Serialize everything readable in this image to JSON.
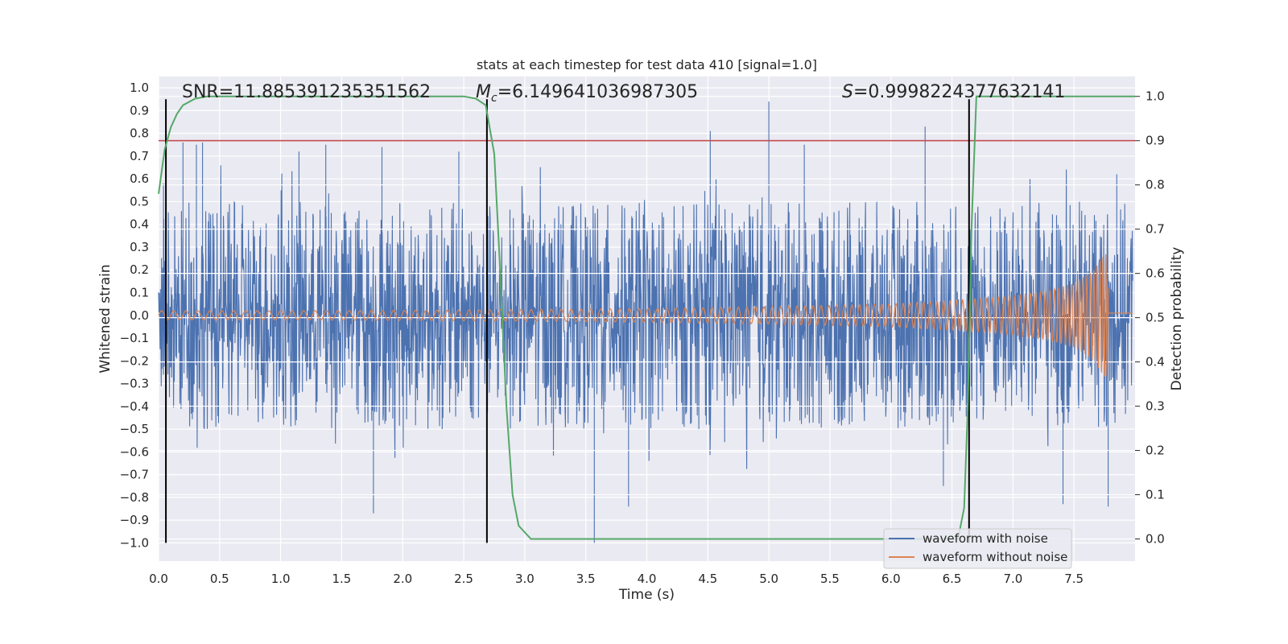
{
  "chart_data": {
    "type": "line",
    "title": "stats at each timestep for test data 410 [signal=1.0]",
    "xlabel": "Time (s)",
    "ylabel_left": "Whitened strain",
    "ylabel_right": "Detection probability",
    "xlim": [
      0.0,
      8.0
    ],
    "ylim_left": [
      -1.08,
      1.05
    ],
    "ylim_right": [
      -0.05,
      1.045
    ],
    "x_ticks": [
      "0.0",
      "0.5",
      "1.0",
      "1.5",
      "2.0",
      "2.5",
      "3.0",
      "3.5",
      "4.0",
      "4.5",
      "5.0",
      "5.5",
      "6.0",
      "6.5",
      "7.0",
      "7.5"
    ],
    "x_tick_values": [
      0.0,
      0.5,
      1.0,
      1.5,
      2.0,
      2.5,
      3.0,
      3.5,
      4.0,
      4.5,
      5.0,
      5.5,
      6.0,
      6.5,
      7.0,
      7.5
    ],
    "y_ticks_left": [
      "1.0",
      "0.9",
      "0.8",
      "0.7",
      "0.6",
      "0.5",
      "0.4",
      "0.3",
      "0.2",
      "0.1",
      "0.0",
      "−0.1",
      "−0.2",
      "−0.3",
      "−0.4",
      "−0.5",
      "−0.6",
      "−0.7",
      "−0.8",
      "−0.9",
      "−1.0"
    ],
    "y_tick_values_left": [
      1.0,
      0.9,
      0.8,
      0.7,
      0.6,
      0.5,
      0.4,
      0.3,
      0.2,
      0.1,
      0.0,
      -0.1,
      -0.2,
      -0.3,
      -0.4,
      -0.5,
      -0.6,
      -0.7,
      -0.8,
      -0.9,
      -1.0
    ],
    "y_ticks_right": [
      "1.0",
      "0.9",
      "0.8",
      "0.7",
      "0.6",
      "0.5",
      "0.4",
      "0.3",
      "0.2",
      "0.1",
      "0.0"
    ],
    "y_tick_values_right": [
      1.0,
      0.9,
      0.8,
      0.7,
      0.6,
      0.5,
      0.4,
      0.3,
      0.2,
      0.1,
      0.0
    ],
    "annotations": {
      "snr": "SNR=11.885391235351562",
      "mc_symbol": "M",
      "mc_sub": "c",
      "mc_value": "=6.149641036987305",
      "s_symbol": "S",
      "s_value": "=0.9998224377632141"
    },
    "vertical_markers_s": [
      0.06,
      2.69,
      6.64
    ],
    "threshold_probability": 0.9,
    "series": [
      {
        "name": "waveform with noise",
        "color": "#4c72b0",
        "axis": "left",
        "description_values": "dense noise, typical amplitude about 0.45, peaks near 0.94 at t=5.0 and -1.0 at t=3.57",
        "peaks": [
          [
            0.04,
            0.58
          ],
          [
            0.2,
            0.76
          ],
          [
            0.31,
            0.75
          ],
          [
            0.36,
            0.76
          ],
          [
            1.15,
            0.72
          ],
          [
            1.37,
            0.75
          ],
          [
            1.76,
            -0.87
          ],
          [
            1.83,
            0.74
          ],
          [
            2.46,
            0.72
          ],
          [
            3.57,
            -1.0
          ],
          [
            3.85,
            -0.84
          ],
          [
            4.52,
            0.81
          ],
          [
            5.0,
            0.94
          ],
          [
            5.29,
            0.75
          ],
          [
            6.28,
            0.83
          ],
          [
            6.43,
            -0.75
          ],
          [
            7.41,
            -0.83
          ],
          [
            7.78,
            -0.84
          ],
          [
            7.85,
            0.62
          ]
        ]
      },
      {
        "name": "waveform without noise",
        "color": "#dd8452",
        "axis": "left",
        "description_values": "chirp signal: amplitude 0.02 early, growing to ~0.27 at merger t=7.78, then ~0.01",
        "envelope": [
          [
            0.0,
            0.02
          ],
          [
            1.0,
            0.02
          ],
          [
            2.0,
            0.022
          ],
          [
            3.0,
            0.025
          ],
          [
            4.0,
            0.03
          ],
          [
            5.0,
            0.038
          ],
          [
            6.0,
            0.05
          ],
          [
            6.5,
            0.065
          ],
          [
            7.0,
            0.085
          ],
          [
            7.3,
            0.11
          ],
          [
            7.5,
            0.14
          ],
          [
            7.65,
            0.19
          ],
          [
            7.75,
            0.27
          ],
          [
            7.78,
            0.27
          ]
        ]
      },
      {
        "name": "detection probability",
        "color": "#55a868",
        "axis": "right",
        "points": [
          [
            0.0,
            0.78
          ],
          [
            0.05,
            0.88
          ],
          [
            0.1,
            0.93
          ],
          [
            0.15,
            0.96
          ],
          [
            0.2,
            0.98
          ],
          [
            0.3,
            0.995
          ],
          [
            0.4,
            1.0
          ],
          [
            2.5,
            1.0
          ],
          [
            2.6,
            0.995
          ],
          [
            2.68,
            0.98
          ],
          [
            2.75,
            0.87
          ],
          [
            2.8,
            0.6
          ],
          [
            2.85,
            0.3
          ],
          [
            2.9,
            0.1
          ],
          [
            2.95,
            0.03
          ],
          [
            3.05,
            0.0
          ],
          [
            6.55,
            0.0
          ],
          [
            6.6,
            0.07
          ],
          [
            6.63,
            0.3
          ],
          [
            6.66,
            0.7
          ],
          [
            6.7,
            1.0
          ],
          [
            8.0,
            1.0
          ]
        ]
      }
    ],
    "legend": [
      "waveform with noise",
      "waveform without noise"
    ],
    "legend_position": "lower-right",
    "threshold_color": "#c44e52",
    "marker_color": "#000000",
    "plot_background": "#eaeaf2",
    "grid": true
  }
}
